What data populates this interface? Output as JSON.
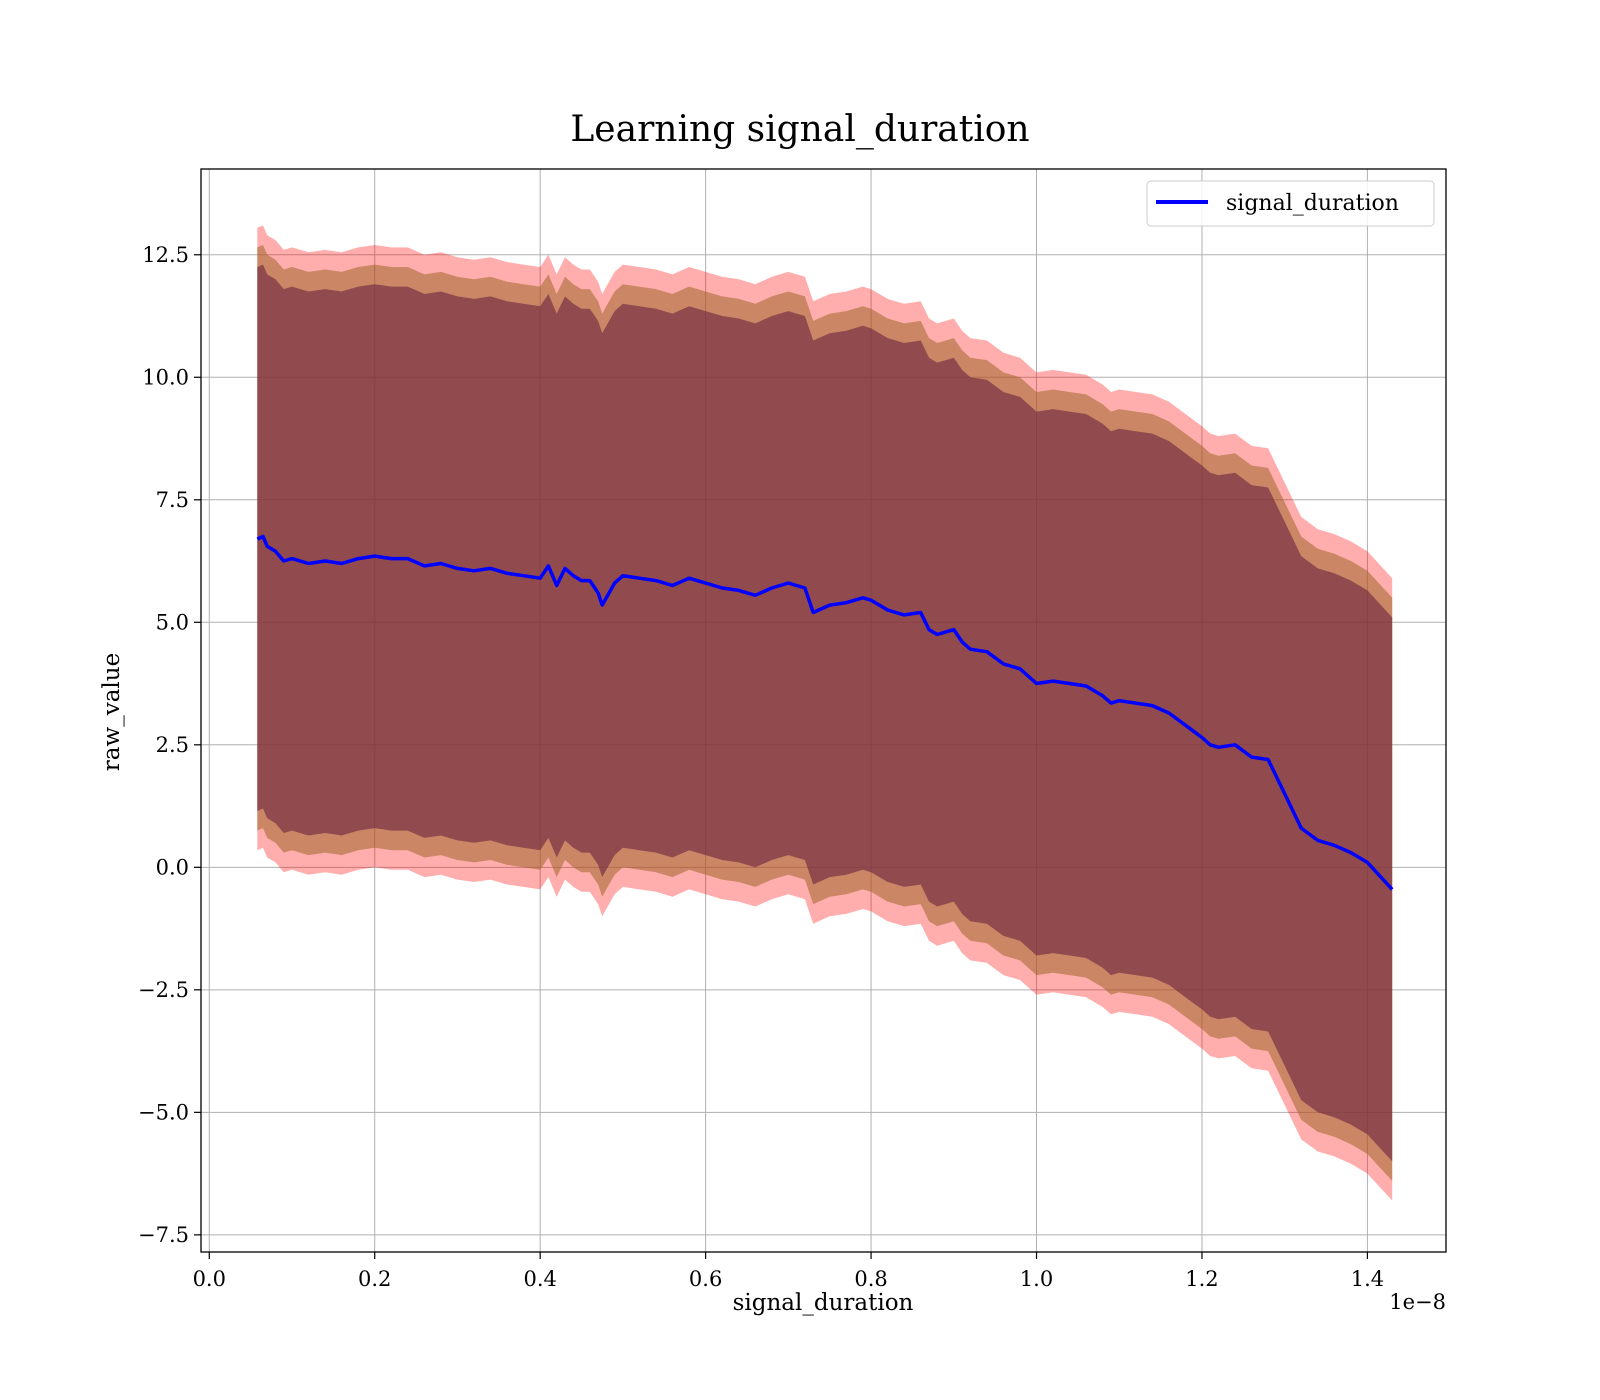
{
  "chart_data": {
    "type": "line",
    "title": "Learning signal_duration",
    "xlabel": "signal_duration",
    "ylabel": "raw_value",
    "x_offset_text": "1e−8",
    "x_scale": 1e-08,
    "xlim": [
      -0.01,
      1.495
    ],
    "ylim": [
      -7.85,
      14.25
    ],
    "x_ticks": [
      0.0,
      0.2,
      0.4,
      0.6,
      0.8,
      1.0,
      1.2,
      1.4
    ],
    "x_tick_labels": [
      "0.0",
      "0.2",
      "0.4",
      "0.6",
      "0.8",
      "1.0",
      "1.2",
      "1.4"
    ],
    "y_ticks": [
      -7.5,
      -5.0,
      -2.5,
      0.0,
      2.5,
      5.0,
      7.5,
      10.0,
      12.5
    ],
    "y_tick_labels": [
      "−7.5",
      "−5.0",
      "−2.5",
      "0.0",
      "2.5",
      "5.0",
      "7.5",
      "10.0",
      "12.5"
    ],
    "grid": true,
    "legend": {
      "position": "upper right",
      "entries": [
        "signal_duration"
      ]
    },
    "colors": {
      "line": "#0000ff",
      "band_outer": "#ff0000",
      "band_mid": "#a0662a",
      "band_inner": "#6e2640",
      "grid": "#b0b0b0"
    },
    "series": [
      {
        "name": "signal_duration",
        "x": [
          0.058,
          0.065,
          0.07,
          0.08,
          0.09,
          0.1,
          0.12,
          0.14,
          0.16,
          0.18,
          0.2,
          0.22,
          0.24,
          0.26,
          0.28,
          0.3,
          0.32,
          0.34,
          0.36,
          0.38,
          0.4,
          0.41,
          0.42,
          0.43,
          0.44,
          0.45,
          0.46,
          0.47,
          0.475,
          0.49,
          0.5,
          0.52,
          0.54,
          0.56,
          0.58,
          0.6,
          0.62,
          0.64,
          0.66,
          0.68,
          0.7,
          0.72,
          0.73,
          0.75,
          0.77,
          0.79,
          0.8,
          0.82,
          0.84,
          0.86,
          0.87,
          0.88,
          0.9,
          0.91,
          0.92,
          0.94,
          0.96,
          0.98,
          1.0,
          1.02,
          1.04,
          1.06,
          1.08,
          1.09,
          1.1,
          1.12,
          1.14,
          1.16,
          1.18,
          1.2,
          1.21,
          1.22,
          1.24,
          1.26,
          1.28,
          1.3,
          1.32,
          1.34,
          1.36,
          1.38,
          1.4,
          1.43
        ],
        "values": [
          6.7,
          6.75,
          6.55,
          6.45,
          6.25,
          6.3,
          6.2,
          6.25,
          6.2,
          6.3,
          6.35,
          6.3,
          6.3,
          6.15,
          6.2,
          6.1,
          6.05,
          6.1,
          6.0,
          5.95,
          5.9,
          6.15,
          5.75,
          6.1,
          5.95,
          5.85,
          5.85,
          5.6,
          5.35,
          5.8,
          5.95,
          5.9,
          5.85,
          5.75,
          5.9,
          5.8,
          5.7,
          5.65,
          5.55,
          5.7,
          5.8,
          5.7,
          5.2,
          5.35,
          5.4,
          5.5,
          5.45,
          5.25,
          5.15,
          5.2,
          4.85,
          4.75,
          4.85,
          4.6,
          4.45,
          4.4,
          4.15,
          4.05,
          3.75,
          3.8,
          3.75,
          3.7,
          3.5,
          3.35,
          3.4,
          3.35,
          3.3,
          3.15,
          2.9,
          2.65,
          2.5,
          2.45,
          2.5,
          2.25,
          2.2,
          1.5,
          0.8,
          0.55,
          0.45,
          0.3,
          0.1,
          -0.45
        ]
      }
    ],
    "bands": {
      "outer_upper_offset": 6.35,
      "outer_lower_offset": 6.35,
      "mid_upper_offset": 5.95,
      "mid_lower_offset": 5.95,
      "inner_upper_offset": 5.55,
      "inner_lower_offset": 5.55
    }
  }
}
